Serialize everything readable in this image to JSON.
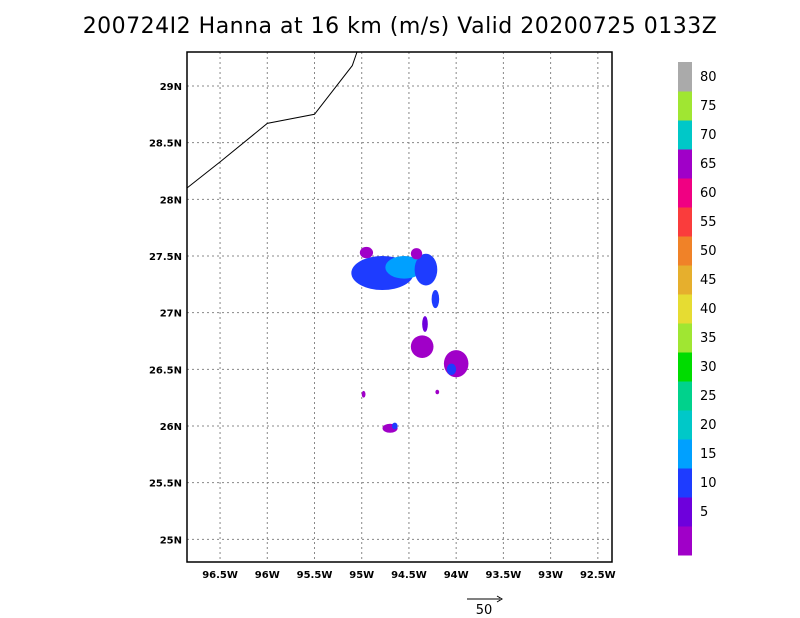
{
  "title": "200724I2 Hanna at 16 km (m/s) Valid 20200725 0133Z",
  "map": {
    "lon_range": [
      -96.85,
      -92.35
    ],
    "lat_range": [
      24.8,
      29.3
    ],
    "lon_ticks": [
      {
        "value": -96.5,
        "label": "96.5W"
      },
      {
        "value": -96.0,
        "label": "96W"
      },
      {
        "value": -95.5,
        "label": "95.5W"
      },
      {
        "value": -95.0,
        "label": "95W"
      },
      {
        "value": -94.5,
        "label": "94.5W"
      },
      {
        "value": -94.0,
        "label": "94W"
      },
      {
        "value": -93.5,
        "label": "93.5W"
      },
      {
        "value": -93.0,
        "label": "93W"
      },
      {
        "value": -92.5,
        "label": "92.5W"
      }
    ],
    "lat_ticks": [
      {
        "value": 25.0,
        "label": "25N"
      },
      {
        "value": 25.5,
        "label": "25.5N"
      },
      {
        "value": 26.0,
        "label": "26N"
      },
      {
        "value": 26.5,
        "label": "26.5N"
      },
      {
        "value": 27.0,
        "label": "27N"
      },
      {
        "value": 27.5,
        "label": "27.5N"
      },
      {
        "value": 28.0,
        "label": "28N"
      },
      {
        "value": 28.5,
        "label": "28.5N"
      },
      {
        "value": 29.0,
        "label": "29N"
      }
    ],
    "grid": true,
    "coastline": [
      [
        -96.85,
        28.1
      ],
      [
        -96.5,
        28.33
      ],
      [
        -96.0,
        28.67
      ],
      [
        -95.5,
        28.75
      ],
      [
        -95.1,
        29.18
      ],
      [
        -95.05,
        29.3
      ]
    ]
  },
  "colorbar": {
    "labels": [
      "5",
      "10",
      "15",
      "20",
      "25",
      "30",
      "35",
      "40",
      "45",
      "50",
      "55",
      "60",
      "65",
      "70",
      "75",
      "80"
    ],
    "colors": [
      "#a000c8",
      "#6e00dc",
      "#1e3cff",
      "#00a0ff",
      "#00c8c8",
      "#00d28c",
      "#00dc00",
      "#a0e632",
      "#e6dc32",
      "#e6af2d",
      "#f08228",
      "#fa3c3c",
      "#f00082",
      "#a000c8",
      "#00c8c8",
      "#a0e632",
      "#aaaaaa"
    ]
  },
  "vector_scale": {
    "label": "50"
  },
  "echoes": [
    {
      "lon": -94.78,
      "lat": 27.35,
      "rx": 0.33,
      "ry": 0.15,
      "color": "#1e3cff"
    },
    {
      "lon": -94.55,
      "lat": 27.4,
      "rx": 0.2,
      "ry": 0.1,
      "color": "#00a0ff"
    },
    {
      "lon": -94.32,
      "lat": 27.38,
      "rx": 0.12,
      "ry": 0.14,
      "color": "#1e3cff"
    },
    {
      "lon": -94.95,
      "lat": 27.53,
      "rx": 0.07,
      "ry": 0.05,
      "color": "#a000c8"
    },
    {
      "lon": -94.42,
      "lat": 27.52,
      "rx": 0.06,
      "ry": 0.05,
      "color": "#a000c8"
    },
    {
      "lon": -94.22,
      "lat": 27.12,
      "rx": 0.04,
      "ry": 0.08,
      "color": "#1e3cff"
    },
    {
      "lon": -94.33,
      "lat": 26.9,
      "rx": 0.03,
      "ry": 0.07,
      "color": "#6e00dc"
    },
    {
      "lon": -94.36,
      "lat": 26.7,
      "rx": 0.12,
      "ry": 0.1,
      "color": "#a000c8"
    },
    {
      "lon": -94.0,
      "lat": 26.55,
      "rx": 0.13,
      "ry": 0.12,
      "color": "#a000c8"
    },
    {
      "lon": -94.05,
      "lat": 26.5,
      "rx": 0.05,
      "ry": 0.05,
      "color": "#1e3cff"
    },
    {
      "lon": -94.7,
      "lat": 25.98,
      "rx": 0.08,
      "ry": 0.04,
      "color": "#a000c8"
    },
    {
      "lon": -94.65,
      "lat": 26.0,
      "rx": 0.03,
      "ry": 0.03,
      "color": "#1e3cff"
    },
    {
      "lon": -94.98,
      "lat": 26.28,
      "rx": 0.02,
      "ry": 0.03,
      "color": "#a000c8"
    },
    {
      "lon": -94.2,
      "lat": 26.3,
      "rx": 0.02,
      "ry": 0.02,
      "color": "#a000c8"
    }
  ]
}
